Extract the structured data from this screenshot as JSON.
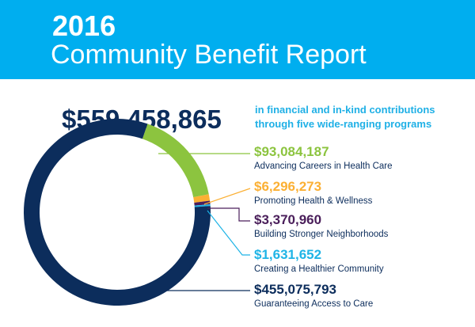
{
  "header": {
    "year": "2016",
    "title": "Community Benefit Report"
  },
  "summary": {
    "total": "$559,458,865",
    "line1": "in financial and in-kind contributions",
    "line2": "through five wide-ranging programs"
  },
  "chart_data": {
    "type": "pie",
    "donut": true,
    "title": "2016 Community Benefit Report",
    "categories": [
      "Advancing Careers in Health Care",
      "Promoting Health & Wellness",
      "Building Stronger Neighborhoods",
      "Creating a Healthier Community",
      "Guaranteeing Access to Care"
    ],
    "values": [
      93084187,
      6296273,
      3370960,
      1631652,
      455075793
    ],
    "labels": [
      "$93,084,187",
      "$6,296,273",
      "$3,370,960",
      "$1,631,652",
      "$455,075,793"
    ],
    "colors": [
      "#8cc43f",
      "#fbb034",
      "#4a1e5a",
      "#1fb4e6",
      "#0c2d5c"
    ]
  }
}
